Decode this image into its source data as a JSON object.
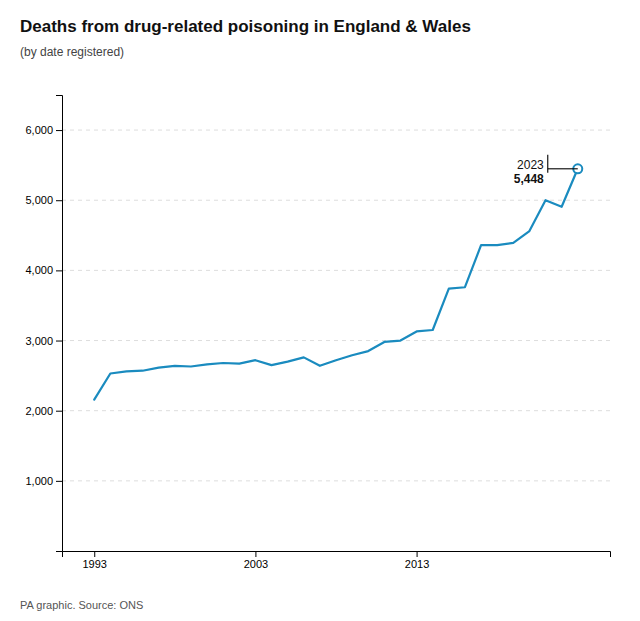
{
  "chart_data": {
    "type": "line",
    "title": "Deaths from drug-related poisoning in England & Wales",
    "subtitle": "(by date registered)",
    "source": "PA graphic. Source: ONS",
    "x": [
      1993,
      1994,
      1995,
      1996,
      1997,
      1998,
      1999,
      2000,
      2001,
      2002,
      2003,
      2004,
      2005,
      2006,
      2007,
      2008,
      2009,
      2010,
      2011,
      2012,
      2013,
      2014,
      2015,
      2016,
      2017,
      2018,
      2019,
      2020,
      2021,
      2022,
      2023
    ],
    "values": [
      2157,
      2530,
      2560,
      2570,
      2615,
      2640,
      2630,
      2660,
      2680,
      2670,
      2720,
      2650,
      2700,
      2760,
      2640,
      2720,
      2790,
      2850,
      2980,
      3000,
      3130,
      3150,
      3740,
      3760,
      4359,
      4359,
      4393,
      4561,
      5000,
      4907,
      5448
    ],
    "color": "#1a8bbf",
    "xlim": [
      1991,
      2025
    ],
    "xticks": [
      1993,
      2003,
      2013
    ],
    "ylim": [
      0,
      6500
    ],
    "yticks": [
      {
        "value": 1000,
        "label": "1,000"
      },
      {
        "value": 2000,
        "label": "2,000"
      },
      {
        "value": 3000,
        "label": "3,000"
      },
      {
        "value": 4000,
        "label": "4,000"
      },
      {
        "value": 5000,
        "label": "5,000"
      },
      {
        "value": 6000,
        "label": "6,000"
      }
    ],
    "grid": true,
    "annotation": {
      "x": 2023,
      "value": 5448,
      "labels": [
        "2023",
        "5,448"
      ]
    }
  }
}
